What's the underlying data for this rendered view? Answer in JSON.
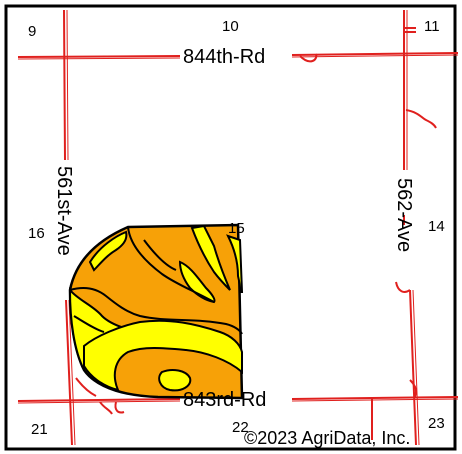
{
  "map": {
    "sections": [
      "9",
      "10",
      "11",
      "16",
      "15",
      "14",
      "21",
      "22",
      "23"
    ],
    "roads": {
      "north": "844th-Rd",
      "south": "843rd-Rd",
      "west": "561st-Ave",
      "east": "562-Ave"
    },
    "copyright": "©2023 AgriData, Inc.",
    "colors": {
      "road_line": "#e0201e",
      "soil_orange": "#f7a107",
      "soil_yellow": "#ffff00",
      "boundary": "#000000",
      "background": "#ffffff"
    }
  }
}
